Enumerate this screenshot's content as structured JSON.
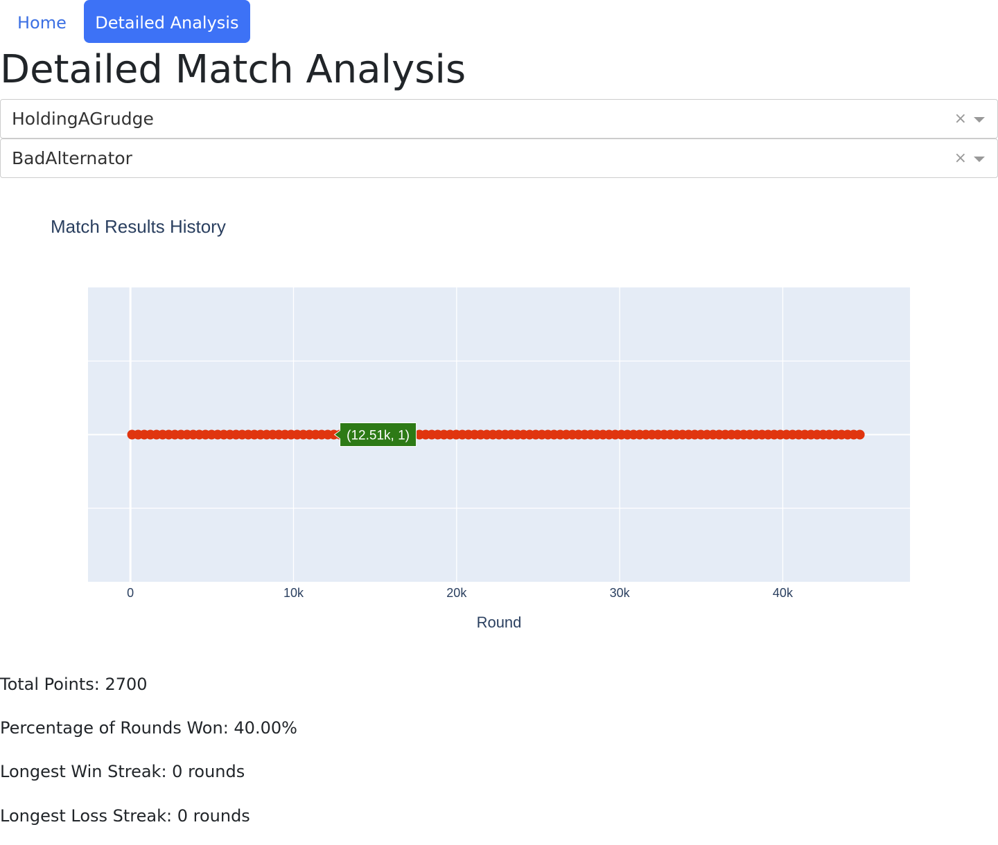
{
  "nav": {
    "home_label": "Home",
    "analysis_label": "Detailed Analysis"
  },
  "page_title": "Detailed Match Analysis",
  "selects": {
    "player_one": "HoldingAGrudge",
    "player_two": "BadAlternator",
    "clear_glyph": "×"
  },
  "chart_data": {
    "type": "scatter",
    "title": "Match Results History",
    "xlabel": "Round",
    "ylabel": "",
    "x_ticks": [
      0,
      10000,
      20000,
      30000,
      40000
    ],
    "x_tick_labels": [
      "0",
      "10k",
      "20k",
      "30k",
      "40k"
    ],
    "xlim": [
      -2600,
      47800
    ],
    "ylim": [
      0,
      2
    ],
    "grid": true,
    "marker_color": "#e0350f",
    "x_start": 100,
    "x_end": 45000,
    "x_step": 375,
    "y_value": 1,
    "hover": {
      "x": 12510,
      "y": 1,
      "label": "(12.51k, 1)",
      "color": "#2d7a16"
    }
  },
  "stats": {
    "total_points": "Total Points: 2700",
    "percent_won": "Percentage of Rounds Won: 40.00%",
    "win_streak": "Longest Win Streak: 0 rounds",
    "loss_streak": "Longest Loss Streak: 0 rounds"
  }
}
